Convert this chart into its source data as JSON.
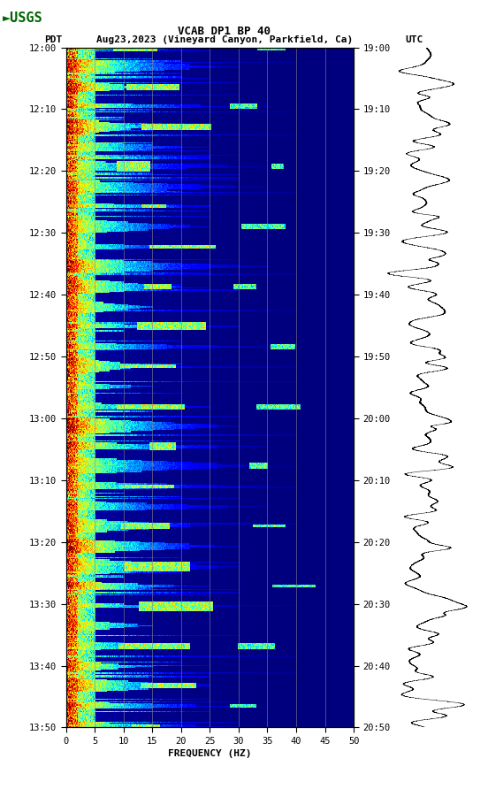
{
  "title_line1": "VCAB DP1 BP 40",
  "title_line2_pdt": "PDT",
  "title_line2_date": "Aug23,2023 (Vineyard Canyon, Parkfield, Ca)",
  "title_line2_utc": "UTC",
  "xlabel": "FREQUENCY (HZ)",
  "freq_min": 0,
  "freq_max": 50,
  "freq_ticks": [
    0,
    5,
    10,
    15,
    20,
    25,
    30,
    35,
    40,
    45,
    50
  ],
  "time_labels_left": [
    "12:00",
    "12:10",
    "12:20",
    "12:30",
    "12:40",
    "12:50",
    "13:00",
    "13:10",
    "13:20",
    "13:30",
    "13:40",
    "13:50"
  ],
  "time_labels_right": [
    "19:00",
    "19:10",
    "19:20",
    "19:30",
    "19:40",
    "19:50",
    "20:00",
    "20:10",
    "20:20",
    "20:30",
    "20:40",
    "20:50"
  ],
  "n_time_steps": 600,
  "n_freq_steps": 500,
  "vertical_lines_freq": [
    5,
    10,
    15,
    20,
    25,
    30,
    35,
    40,
    45
  ],
  "bg_color": "white",
  "logo_color": "#006400",
  "spectrogram_cmap": "jet",
  "fig_width": 5.52,
  "fig_height": 8.92,
  "dpi": 100
}
